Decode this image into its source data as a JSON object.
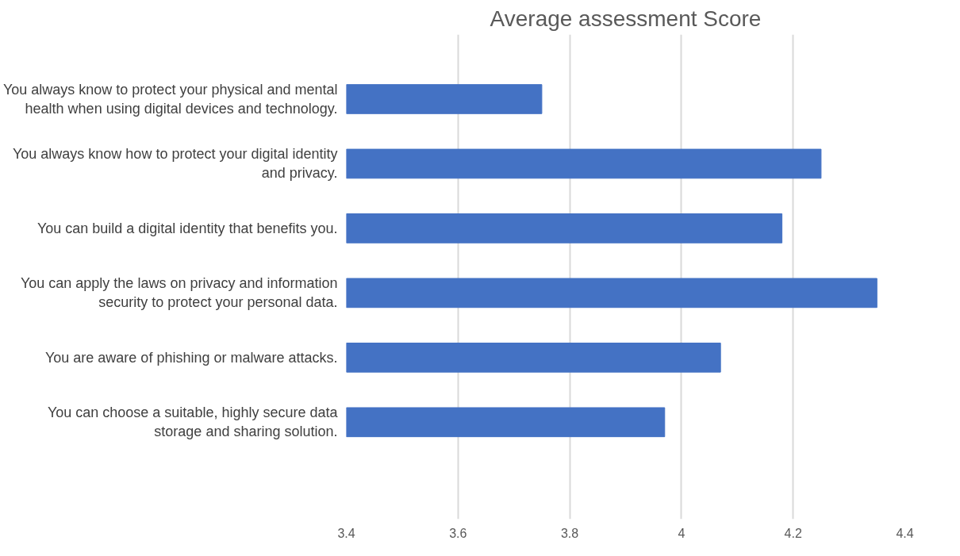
{
  "chart_data": {
    "type": "bar",
    "orientation": "horizontal",
    "title": "Average assessment Score",
    "categories": [
      "You always know to protect your physical and mental health when using digital devices and technology.",
      "You always know how to protect your digital identity and privacy.",
      "You can build a digital identity that benefits you.",
      "You can apply the laws on privacy and information security to protect your personal data.",
      "You are aware of phishing or malware attacks.",
      "You can choose a suitable, highly secure data storage and sharing solution."
    ],
    "values": [
      3.75,
      4.25,
      4.18,
      4.35,
      4.07,
      3.97
    ],
    "color": "#4472c4",
    "xlim": [
      3.4,
      4.4
    ],
    "xticks": [
      3.4,
      3.6,
      3.8,
      4,
      4.2,
      4.4
    ],
    "grid": "x"
  }
}
